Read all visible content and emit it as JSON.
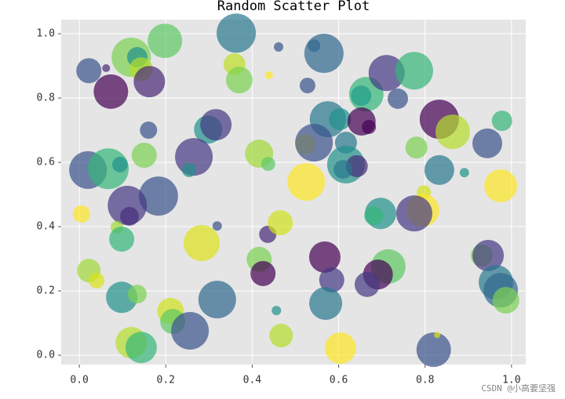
{
  "chart_data": {
    "type": "scatter",
    "title": "Random Scatter Plot",
    "x": [
      0.022,
      0.062,
      0.12,
      0.134,
      0.198,
      0.363,
      0.461,
      0.543,
      0.566,
      0.359,
      0.37,
      0.439,
      0.143,
      0.162,
      0.073,
      0.528,
      0.664,
      0.652,
      0.711,
      0.737,
      0.775,
      0.16,
      0.298,
      0.316,
      0.575,
      0.603,
      0.653,
      0.67,
      0.833,
      0.864,
      0.978,
      0.944,
      0.78,
      0.523,
      0.543,
      0.617,
      0.15,
      0.02,
      0.067,
      0.094,
      0.265,
      0.254,
      0.416,
      0.437,
      0.617,
      0.642,
      0.61,
      0.525,
      0.833,
      0.891,
      0.975,
      0.797,
      0.183,
      0.111,
      0.116,
      0.005,
      0.087,
      0.098,
      0.319,
      0.283,
      0.436,
      0.465,
      0.697,
      0.681,
      0.795,
      0.775,
      0.416,
      0.425,
      0.568,
      0.584,
      0.715,
      0.691,
      0.666,
      0.931,
      0.946,
      0.964,
      0.975,
      0.987,
      0.022,
      0.04,
      0.098,
      0.134,
      0.319,
      0.211,
      0.216,
      0.256,
      0.12,
      0.143,
      0.456,
      0.467,
      0.57,
      0.604,
      0.82,
      0.828
    ],
    "y": [
      0.885,
      0.893,
      0.927,
      0.927,
      0.978,
      1.002,
      0.959,
      0.963,
      0.939,
      0.905,
      0.856,
      0.871,
      0.89,
      0.851,
      0.82,
      0.839,
      0.812,
      0.807,
      0.878,
      0.798,
      0.885,
      0.7,
      0.702,
      0.717,
      0.734,
      0.734,
      0.727,
      0.71,
      0.734,
      0.695,
      0.729,
      0.659,
      0.646,
      0.656,
      0.661,
      0.661,
      0.622,
      0.576,
      0.58,
      0.593,
      0.617,
      0.576,
      0.627,
      0.595,
      0.593,
      0.588,
      0.578,
      0.539,
      0.576,
      0.568,
      0.527,
      0.507,
      0.495,
      0.466,
      0.432,
      0.439,
      0.398,
      0.361,
      0.402,
      0.349,
      0.376,
      0.412,
      0.441,
      0.434,
      0.451,
      0.441,
      0.298,
      0.254,
      0.305,
      0.234,
      0.276,
      0.251,
      0.22,
      0.31,
      0.31,
      0.227,
      0.202,
      0.171,
      0.263,
      0.232,
      0.18,
      0.19,
      0.173,
      0.137,
      0.105,
      0.076,
      0.039,
      0.024,
      0.139,
      0.061,
      0.161,
      0.022,
      0.017,
      0.063
    ],
    "sizes": [
      256,
      25,
      625,
      169,
      484,
      625,
      36,
      64,
      625,
      196,
      289,
      25,
      225,
      400,
      484,
      100,
      484,
      169,
      529,
      169,
      576,
      121,
      324,
      400,
      529,
      196,
      324,
      81,
      625,
      484,
      169,
      361,
      196,
      169,
      576,
      196,
      256,
      576,
      676,
      100,
      576,
      81,
      324,
      81,
      576,
      196,
      144,
      576,
      361,
      36,
      441,
      81,
      625,
      625,
      144,
      121,
      64,
      256,
      36,
      529,
      121,
      256,
      400,
      144,
      441,
      529,
      256,
      256,
      400,
      256,
      484,
      361,
      256,
      196,
      400,
      484,
      484,
      289,
      225,
      100,
      400,
      144,
      576,
      289,
      256,
      576,
      400,
      400,
      36,
      225,
      441,
      400,
      484,
      16
    ],
    "colors": [
      "#3b528b",
      "#482878",
      "#7ad151",
      "#21918c",
      "#5ec962",
      "#2a788e",
      "#3b528b",
      "#31688e",
      "#31688e",
      "#bddf26",
      "#7ad151",
      "#fde725",
      "#b5de2b",
      "#482878",
      "#440154",
      "#3b528b",
      "#35b779",
      "#1f9e89",
      "#443983",
      "#3b528b",
      "#35b779",
      "#3b528b",
      "#21918c",
      "#443983",
      "#2a788e",
      "#21918c",
      "#440154",
      "#440154",
      "#440154",
      "#b5de2b",
      "#35b779",
      "#3b528b",
      "#7ad151",
      "#fde725",
      "#3b528b",
      "#2a788e",
      "#7ad151",
      "#3b528b",
      "#35b779",
      "#21918c",
      "#443983",
      "#21918c",
      "#a0da39",
      "#5ec962",
      "#21918c",
      "#482878",
      "#2a788e",
      "#fde725",
      "#2a788e",
      "#21918c",
      "#fde725",
      "#d2e21b",
      "#3b528b",
      "#443983",
      "#472d7b",
      "#fde725",
      "#a0da39",
      "#35b779",
      "#3b528b",
      "#dde318",
      "#482878",
      "#d2e21b",
      "#21918c",
      "#35b779",
      "#fde725",
      "#443983",
      "#7ad151",
      "#440154",
      "#440154",
      "#443983",
      "#5ec962",
      "#440154",
      "#443983",
      "#7ad151",
      "#443983",
      "#2a788e",
      "#31688e",
      "#7ad151",
      "#a0da39",
      "#dde318",
      "#21918c",
      "#7ad151",
      "#31688e",
      "#d2e21b",
      "#5ec962",
      "#3b528b",
      "#b5de2b",
      "#35b779",
      "#21918c",
      "#b5de2b",
      "#2a788e",
      "#fde725",
      "#3b528b",
      "#dde318"
    ],
    "alpha": 0.7,
    "xlim": [
      -0.042,
      1.033
    ],
    "ylim": [
      -0.029,
      1.044
    ],
    "xticks": [
      {
        "value": 0,
        "label": "0.0"
      },
      0.2,
      0.4,
      0.6,
      0.8,
      {
        "value": 1,
        "label": "1.0"
      }
    ],
    "yticks": [
      {
        "value": 0,
        "label": "0.0"
      },
      0.2,
      0.4,
      0.6,
      0.8,
      {
        "value": 1,
        "label": "1.0"
      }
    ],
    "grid": true,
    "watermark": "CSDN @小高要坚强"
  }
}
